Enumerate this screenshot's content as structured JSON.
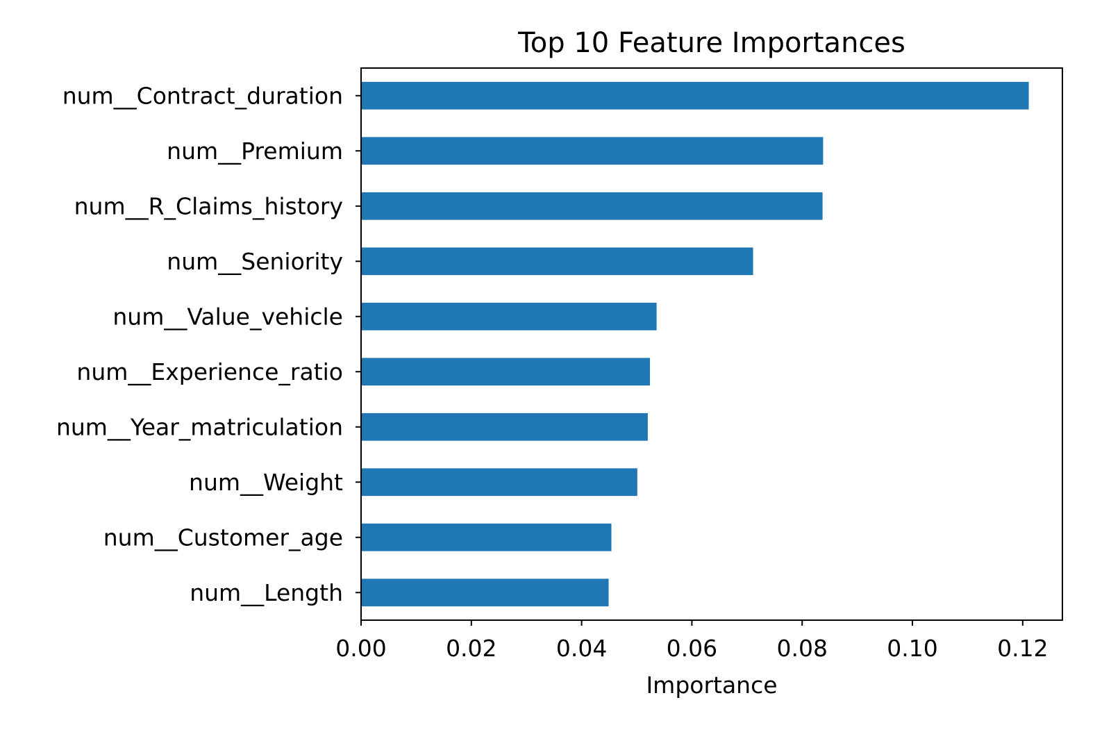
{
  "chart_data": {
    "type": "bar",
    "orientation": "horizontal",
    "title": "Top 10 Feature Importances",
    "xlabel": "Importance",
    "ylabel": "",
    "xlim": [
      0,
      0.1272
    ],
    "xticks": [
      "0.00",
      "0.02",
      "0.04",
      "0.06",
      "0.08",
      "0.10",
      "0.12"
    ],
    "categories": [
      "num__Contract_duration",
      "num__Premium",
      "num__R_Claims_history",
      "num__Seniority",
      "num__Value_vehicle",
      "num__Experience_ratio",
      "num__Year_matriculation",
      "num__Weight",
      "num__Customer_age",
      "num__Length"
    ],
    "values": [
      0.1211,
      0.0838,
      0.0837,
      0.0711,
      0.0536,
      0.0524,
      0.052,
      0.0501,
      0.0454,
      0.0449
    ],
    "bar_color": "#1f77b4",
    "grid": false,
    "legend": "none"
  }
}
